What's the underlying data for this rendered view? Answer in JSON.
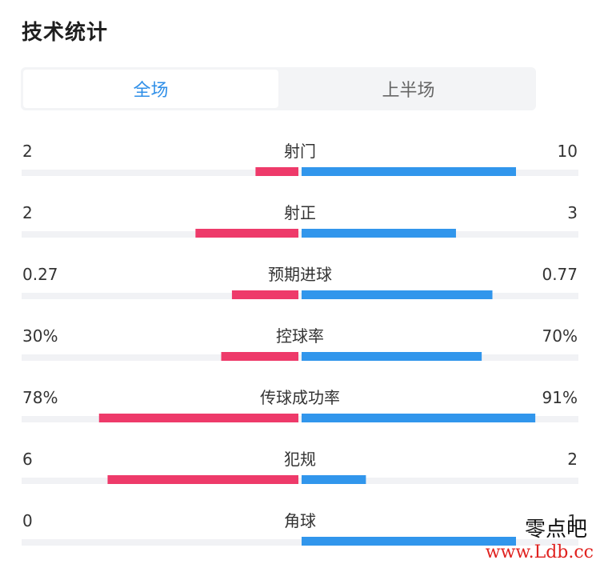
{
  "header": {
    "title": "技术统计"
  },
  "tabs": [
    {
      "label": "全场",
      "active": true
    },
    {
      "label": "上半场",
      "active": false
    }
  ],
  "colors": {
    "home": "#ee3a6a",
    "away": "#3196ec",
    "track": "#f1f2f5",
    "active_tab": "#2f8fe8"
  },
  "stats": [
    {
      "label": "射门",
      "left": "2",
      "right": "10",
      "left_ratio": 0.2,
      "right_ratio": 1.0
    },
    {
      "label": "射正",
      "left": "2",
      "right": "3",
      "left_ratio": 0.48,
      "right_ratio": 0.72
    },
    {
      "label": "预期进球",
      "left": "0.27",
      "right": "0.77",
      "left_ratio": 0.31,
      "right_ratio": 0.89
    },
    {
      "label": "控球率",
      "left": "30%",
      "right": "70%",
      "left_ratio": 0.36,
      "right_ratio": 0.84
    },
    {
      "label": "传球成功率",
      "left": "78%",
      "right": "91%",
      "left_ratio": 0.93,
      "right_ratio": 1.09
    },
    {
      "label": "犯规",
      "left": "6",
      "right": "2",
      "left_ratio": 0.89,
      "right_ratio": 0.3
    },
    {
      "label": "角球",
      "left": "0",
      "right": "1",
      "left_ratio": 0.0,
      "right_ratio": 1.0
    }
  ],
  "watermark": {
    "line1": "零点吧",
    "line2": "www.Ldb.cc"
  }
}
